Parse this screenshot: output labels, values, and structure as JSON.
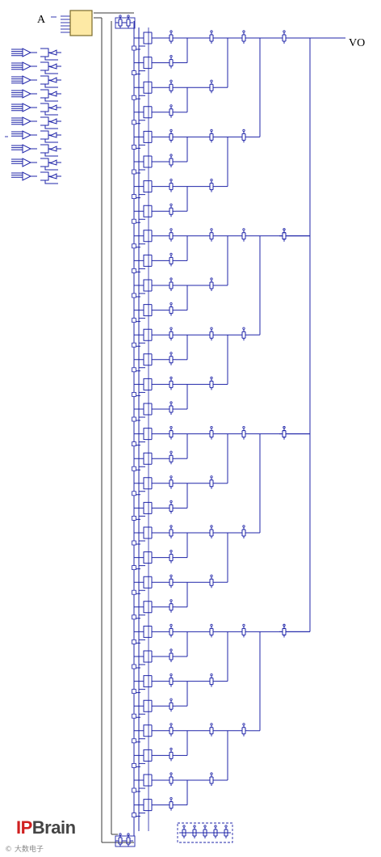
{
  "labels": {
    "input": "A",
    "output": "VO"
  },
  "brand": {
    "accent": "IP",
    "rest": "Brain"
  },
  "watermark": "© 大数电子",
  "colors": {
    "wire": "#1f24a8",
    "frame": "#3a3a3a",
    "decoder_fill": "#fde9a5",
    "decoder_stroke": "#7a6a2a",
    "text": "#000000"
  },
  "structure": {
    "mux_stages": 5,
    "first_stage_switches": 32,
    "inverter_groups": [
      6,
      4
    ]
  }
}
